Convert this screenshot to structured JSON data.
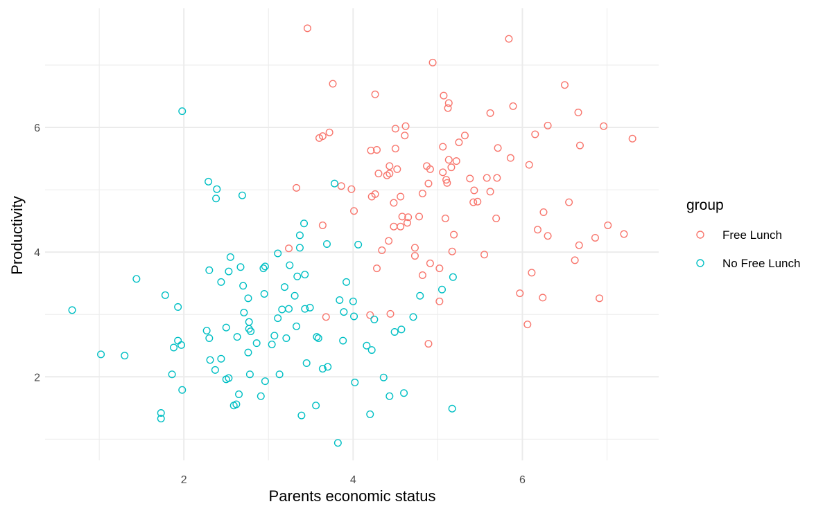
{
  "chart_data": {
    "type": "scatter",
    "title": "",
    "xlabel": "Parents economic status",
    "ylabel": "Productivity",
    "xlim": [
      0.36,
      7.61
    ],
    "ylim": [
      0.66,
      7.91
    ],
    "xticks": [
      2,
      4,
      6
    ],
    "yticks": [
      2,
      4,
      6
    ],
    "xtick_labels": [
      "2",
      "4",
      "6"
    ],
    "ytick_labels": [
      "2",
      "4",
      "6"
    ],
    "grid": true,
    "legend": {
      "title": "group",
      "placement": "right"
    },
    "series": [
      {
        "name": "Free Lunch",
        "color": "#F8766D",
        "points": [
          [
            3.46,
            7.59
          ],
          [
            5.84,
            7.42
          ],
          [
            4.94,
            7.04
          ],
          [
            3.76,
            6.7
          ],
          [
            6.5,
            6.68
          ],
          [
            4.26,
            6.53
          ],
          [
            5.07,
            6.51
          ],
          [
            5.13,
            6.39
          ],
          [
            5.12,
            6.31
          ],
          [
            5.89,
            6.34
          ],
          [
            5.62,
            6.23
          ],
          [
            6.66,
            6.24
          ],
          [
            4.5,
            5.98
          ],
          [
            4.62,
            6.02
          ],
          [
            6.3,
            6.03
          ],
          [
            6.96,
            6.02
          ],
          [
            3.72,
            5.92
          ],
          [
            3.64,
            5.86
          ],
          [
            3.6,
            5.83
          ],
          [
            4.61,
            5.87
          ],
          [
            5.32,
            5.87
          ],
          [
            6.15,
            5.89
          ],
          [
            7.3,
            5.82
          ],
          [
            5.25,
            5.76
          ],
          [
            5.06,
            5.69
          ],
          [
            4.21,
            5.63
          ],
          [
            4.28,
            5.64
          ],
          [
            4.5,
            5.66
          ],
          [
            5.71,
            5.67
          ],
          [
            6.68,
            5.71
          ],
          [
            5.86,
            5.51
          ],
          [
            5.13,
            5.48
          ],
          [
            5.22,
            5.46
          ],
          [
            4.43,
            5.38
          ],
          [
            4.87,
            5.38
          ],
          [
            4.91,
            5.33
          ],
          [
            4.52,
            5.33
          ],
          [
            5.16,
            5.36
          ],
          [
            6.08,
            5.4
          ],
          [
            5.06,
            5.28
          ],
          [
            4.4,
            5.23
          ],
          [
            4.43,
            5.26
          ],
          [
            4.3,
            5.26
          ],
          [
            5.38,
            5.18
          ],
          [
            5.1,
            5.16
          ],
          [
            5.11,
            5.11
          ],
          [
            4.89,
            5.1
          ],
          [
            5.58,
            5.19
          ],
          [
            5.7,
            5.19
          ],
          [
            3.33,
            5.03
          ],
          [
            3.86,
            5.06
          ],
          [
            3.98,
            5.01
          ],
          [
            4.26,
            4.93
          ],
          [
            4.56,
            4.89
          ],
          [
            4.22,
            4.89
          ],
          [
            5.43,
            4.99
          ],
          [
            5.62,
            4.97
          ],
          [
            4.82,
            4.94
          ],
          [
            4.48,
            4.79
          ],
          [
            4.01,
            4.66
          ],
          [
            5.42,
            4.8
          ],
          [
            5.47,
            4.81
          ],
          [
            6.55,
            4.8
          ],
          [
            6.25,
            4.64
          ],
          [
            5.09,
            4.54
          ],
          [
            4.78,
            4.57
          ],
          [
            4.58,
            4.57
          ],
          [
            4.65,
            4.56
          ],
          [
            4.64,
            4.47
          ],
          [
            4.48,
            4.41
          ],
          [
            4.56,
            4.41
          ],
          [
            5.69,
            4.54
          ],
          [
            3.64,
            4.43
          ],
          [
            7.01,
            4.43
          ],
          [
            6.18,
            4.36
          ],
          [
            4.42,
            4.18
          ],
          [
            5.19,
            4.28
          ],
          [
            6.3,
            4.26
          ],
          [
            6.86,
            4.23
          ],
          [
            7.2,
            4.29
          ],
          [
            6.67,
            4.11
          ],
          [
            3.24,
            4.06
          ],
          [
            4.34,
            4.03
          ],
          [
            4.73,
            4.07
          ],
          [
            5.17,
            4.01
          ],
          [
            4.73,
            3.94
          ],
          [
            5.55,
            3.96
          ],
          [
            6.62,
            3.87
          ],
          [
            4.91,
            3.82
          ],
          [
            4.28,
            3.74
          ],
          [
            5.02,
            3.74
          ],
          [
            4.82,
            3.63
          ],
          [
            6.11,
            3.67
          ],
          [
            5.97,
            3.34
          ],
          [
            6.24,
            3.27
          ],
          [
            6.91,
            3.26
          ],
          [
            5.02,
            3.21
          ],
          [
            3.68,
            2.96
          ],
          [
            4.2,
            2.99
          ],
          [
            4.44,
            3.01
          ],
          [
            6.06,
            2.84
          ],
          [
            4.89,
            2.53
          ]
        ]
      },
      {
        "name": "No Free Lunch",
        "color": "#00BFC4",
        "points": [
          [
            1.98,
            6.26
          ],
          [
            2.29,
            5.13
          ],
          [
            2.39,
            5.01
          ],
          [
            2.38,
            4.86
          ],
          [
            2.69,
            4.91
          ],
          [
            3.78,
            5.1
          ],
          [
            3.42,
            4.46
          ],
          [
            3.37,
            4.27
          ],
          [
            3.69,
            4.13
          ],
          [
            3.37,
            4.07
          ],
          [
            4.06,
            4.12
          ],
          [
            3.11,
            3.98
          ],
          [
            2.55,
            3.92
          ],
          [
            2.3,
            3.71
          ],
          [
            2.67,
            3.76
          ],
          [
            2.53,
            3.69
          ],
          [
            2.94,
            3.74
          ],
          [
            2.96,
            3.77
          ],
          [
            3.25,
            3.79
          ],
          [
            3.34,
            3.61
          ],
          [
            3.43,
            3.64
          ],
          [
            1.44,
            3.57
          ],
          [
            2.44,
            3.52
          ],
          [
            2.7,
            3.46
          ],
          [
            3.19,
            3.44
          ],
          [
            3.92,
            3.52
          ],
          [
            5.18,
            3.6
          ],
          [
            1.78,
            3.31
          ],
          [
            2.95,
            3.33
          ],
          [
            2.76,
            3.26
          ],
          [
            3.31,
            3.3
          ],
          [
            4.79,
            3.3
          ],
          [
            0.68,
            3.07
          ],
          [
            1.93,
            3.12
          ],
          [
            2.71,
            3.03
          ],
          [
            2.77,
            2.88
          ],
          [
            3.16,
            3.08
          ],
          [
            3.24,
            3.09
          ],
          [
            3.43,
            3.09
          ],
          [
            3.49,
            3.11
          ],
          [
            3.84,
            3.23
          ],
          [
            4.0,
            3.21
          ],
          [
            3.89,
            3.04
          ],
          [
            4.01,
            2.97
          ],
          [
            4.25,
            2.92
          ],
          [
            5.05,
            3.4
          ],
          [
            3.11,
            2.94
          ],
          [
            2.27,
            2.74
          ],
          [
            2.3,
            2.62
          ],
          [
            2.5,
            2.79
          ],
          [
            2.77,
            2.77
          ],
          [
            2.79,
            2.73
          ],
          [
            2.63,
            2.64
          ],
          [
            3.07,
            2.66
          ],
          [
            3.21,
            2.62
          ],
          [
            3.33,
            2.81
          ],
          [
            3.57,
            2.64
          ],
          [
            3.59,
            2.62
          ],
          [
            3.88,
            2.58
          ],
          [
            4.49,
            2.72
          ],
          [
            4.57,
            2.76
          ],
          [
            4.71,
            2.96
          ],
          [
            1.93,
            2.58
          ],
          [
            1.97,
            2.51
          ],
          [
            1.88,
            2.47
          ],
          [
            2.86,
            2.54
          ],
          [
            3.04,
            2.52
          ],
          [
            4.16,
            2.5
          ],
          [
            4.22,
            2.43
          ],
          [
            1.02,
            2.36
          ],
          [
            1.3,
            2.34
          ],
          [
            2.31,
            2.27
          ],
          [
            2.44,
            2.29
          ],
          [
            2.76,
            2.39
          ],
          [
            3.45,
            2.22
          ],
          [
            3.7,
            2.16
          ],
          [
            3.64,
            2.13
          ],
          [
            2.37,
            2.11
          ],
          [
            1.86,
            2.04
          ],
          [
            2.78,
            2.04
          ],
          [
            3.13,
            2.04
          ],
          [
            2.5,
            1.96
          ],
          [
            2.53,
            1.98
          ],
          [
            2.96,
            1.93
          ],
          [
            4.02,
            1.91
          ],
          [
            4.36,
            1.99
          ],
          [
            1.98,
            1.79
          ],
          [
            2.65,
            1.72
          ],
          [
            2.91,
            1.69
          ],
          [
            4.6,
            1.74
          ],
          [
            4.43,
            1.69
          ],
          [
            2.59,
            1.54
          ],
          [
            2.62,
            1.56
          ],
          [
            3.56,
            1.54
          ],
          [
            1.73,
            1.42
          ],
          [
            1.73,
            1.33
          ],
          [
            3.39,
            1.38
          ],
          [
            4.2,
            1.4
          ],
          [
            5.17,
            1.49
          ],
          [
            3.82,
            0.94
          ]
        ]
      }
    ]
  }
}
